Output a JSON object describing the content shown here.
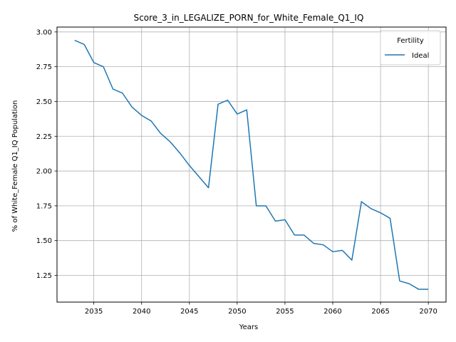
{
  "chart_data": {
    "type": "line",
    "title": "Score_3_in_LEGALIZE_PORN_for_White_Female_Q1_IQ",
    "xlabel": "Years",
    "ylabel": "% of White_Female Q1_IQ Population",
    "xlim": [
      2031.15,
      2071.85
    ],
    "ylim": [
      1.058,
      3.035
    ],
    "xticks": [
      2035,
      2040,
      2045,
      2050,
      2055,
      2060,
      2065,
      2070
    ],
    "yticks": [
      1.25,
      1.5,
      1.75,
      2.0,
      2.25,
      2.5,
      2.75,
      3.0
    ],
    "ytick_labels": [
      "1.25",
      "1.50",
      "1.75",
      "2.00",
      "2.25",
      "2.50",
      "2.75",
      "3.00"
    ],
    "grid": true,
    "legend": {
      "title": "Fertility",
      "placement": "top-right"
    },
    "series": [
      {
        "name": "Ideal",
        "color": "#1f77b4",
        "x": [
          2033,
          2034,
          2035,
          2036,
          2037,
          2038,
          2039,
          2040,
          2041,
          2042,
          2043,
          2044,
          2045,
          2046,
          2047,
          2048,
          2049,
          2050,
          2051,
          2052,
          2053,
          2054,
          2055,
          2056,
          2057,
          2058,
          2059,
          2060,
          2061,
          2062,
          2063,
          2064,
          2065,
          2066,
          2067,
          2068,
          2069,
          2070
        ],
        "y": [
          2.94,
          2.91,
          2.78,
          2.75,
          2.59,
          2.56,
          2.46,
          2.4,
          2.36,
          2.27,
          2.21,
          2.13,
          2.04,
          1.96,
          1.88,
          2.48,
          2.51,
          2.41,
          2.44,
          1.75,
          1.75,
          1.64,
          1.65,
          1.54,
          1.54,
          1.48,
          1.47,
          1.42,
          1.43,
          1.36,
          1.78,
          1.73,
          1.7,
          1.66,
          1.21,
          1.19,
          1.15,
          1.15
        ]
      }
    ]
  }
}
